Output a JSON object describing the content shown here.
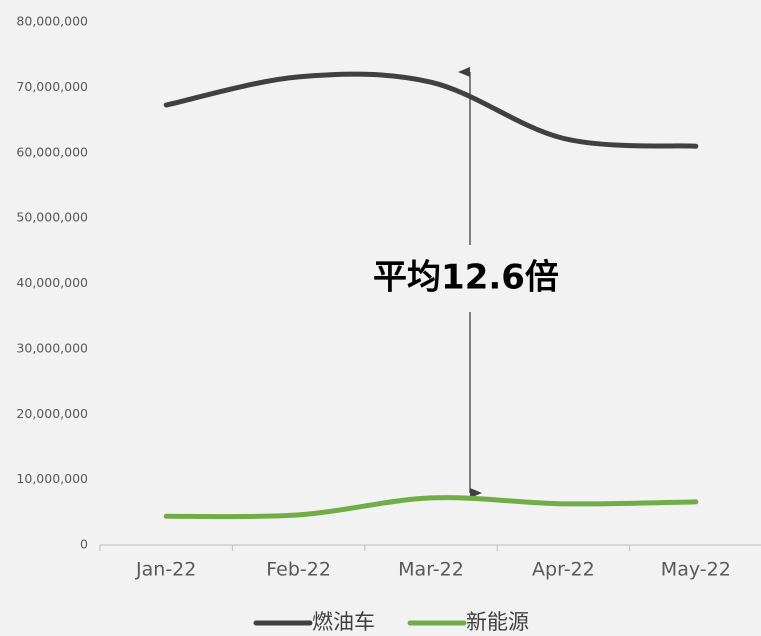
{
  "chart_data": {
    "type": "line",
    "categories": [
      "Jan-22",
      "Feb-22",
      "Mar-22",
      "Apr-22",
      "May-22"
    ],
    "series": [
      {
        "name": "燃油车",
        "color": "#404040",
        "values": [
          67300000,
          71600000,
          70800000,
          62200000,
          61000000
        ]
      },
      {
        "name": "新能源",
        "color": "#70ad47",
        "values": [
          4400000,
          4600000,
          7200000,
          6300000,
          6600000
        ]
      }
    ],
    "ylim": [
      0,
      80000000
    ],
    "yticks": [
      0,
      {
        "value": 10000000,
        "label": "10,000,000"
      },
      {
        "value": 20000000,
        "label": "20,000,000"
      },
      {
        "value": 30000000,
        "label": "30,000,000"
      },
      {
        "value": 40000000,
        "label": "40,000,000"
      },
      {
        "value": 50000000,
        "label": "50,000,000"
      },
      {
        "value": 60000000,
        "label": "60,000,000"
      },
      {
        "value": 70000000,
        "label": "70,000,000"
      },
      {
        "value": 80000000,
        "label": "80,000,000"
      }
    ],
    "annotation": "平均12.6倍",
    "legend": "bottom"
  }
}
